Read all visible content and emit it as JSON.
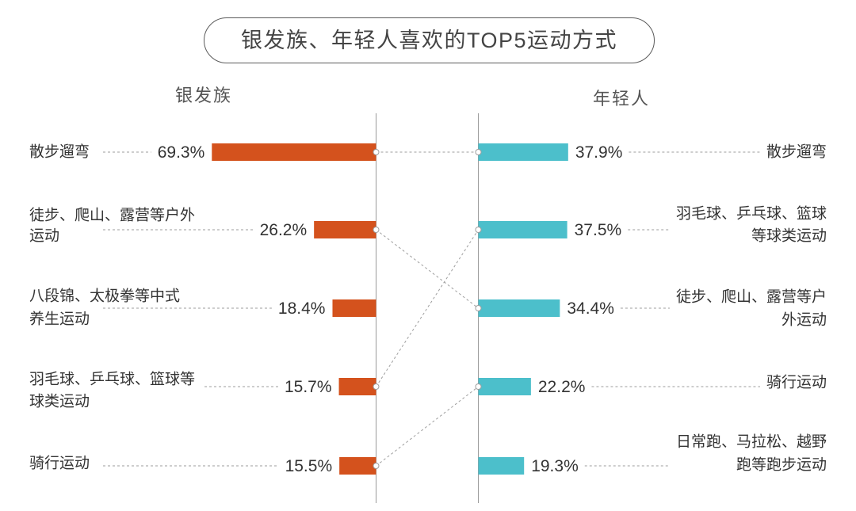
{
  "chart_data": {
    "type": "bar",
    "title": "银发族、年轻人喜欢的TOP5运动方式",
    "unit": "%",
    "panels": [
      {
        "name": "银发族",
        "color": "#D4521D",
        "items": [
          {
            "label_lines": [
              "散步遛弯"
            ],
            "value": 69.3
          },
          {
            "label_lines": [
              "徒步、爬山、露营等户外",
              "运动"
            ],
            "value": 26.2
          },
          {
            "label_lines": [
              "八段锦、太极拳等中式",
              "养生运动"
            ],
            "value": 18.4
          },
          {
            "label_lines": [
              "羽毛球、乒乓球、篮球等",
              "球类运动"
            ],
            "value": 15.7
          },
          {
            "label_lines": [
              "骑行运动"
            ],
            "value": 15.5
          }
        ]
      },
      {
        "name": "年轻人",
        "color": "#4CBFCB",
        "items": [
          {
            "label_lines": [
              "散步遛弯"
            ],
            "value": 37.9
          },
          {
            "label_lines": [
              "羽毛球、乒乓球、篮球",
              "等球类运动"
            ],
            "value": 37.5
          },
          {
            "label_lines": [
              "徒步、爬山、露营等户",
              "外运动"
            ],
            "value": 34.4
          },
          {
            "label_lines": [
              "骑行运动"
            ],
            "value": 22.2
          },
          {
            "label_lines": [
              "日常跑、马拉松、越野",
              "跑等跑步运动"
            ],
            "value": 19.3
          }
        ]
      }
    ]
  }
}
